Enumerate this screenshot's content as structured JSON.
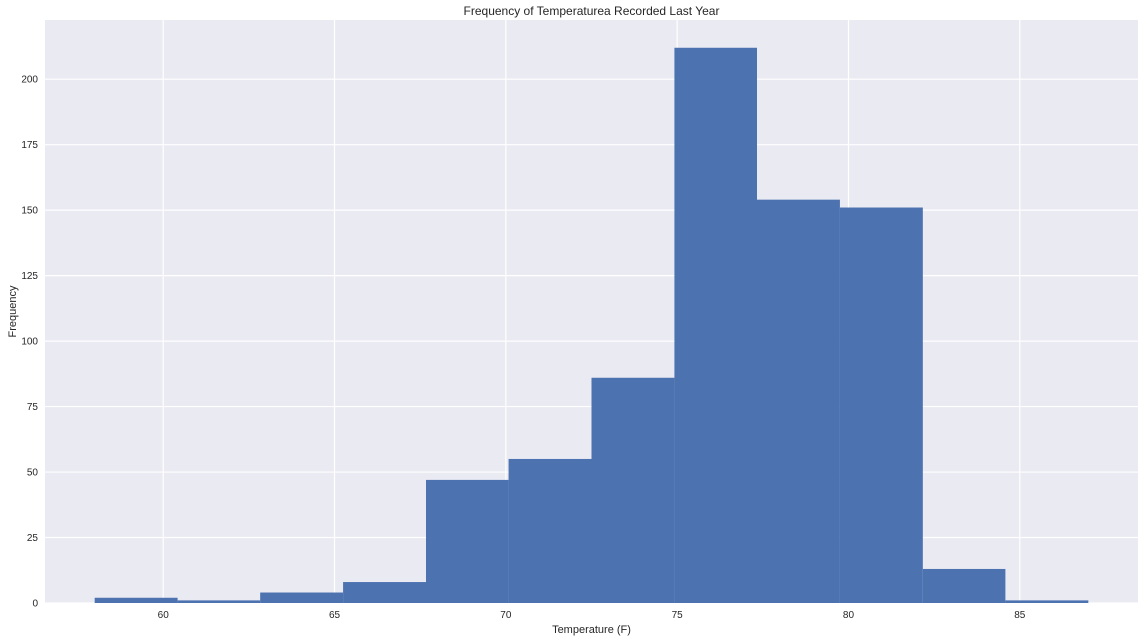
{
  "chart_data": {
    "type": "bar",
    "title": "Frequency of Temperaturea Recorded Last Year",
    "xlabel": "Temperature (F)",
    "ylabel": "Frequency",
    "bin_edges": [
      58.0,
      60.42,
      62.83,
      65.25,
      67.67,
      70.08,
      72.5,
      74.92,
      77.33,
      79.75,
      82.17,
      84.58,
      87.0
    ],
    "values": [
      2,
      1,
      4,
      8,
      47,
      55,
      86,
      212,
      154,
      151,
      13,
      1
    ],
    "xlim": [
      56.55,
      88.45
    ],
    "ylim": [
      0,
      222.6
    ],
    "x_ticks": [
      60,
      65,
      70,
      75,
      80,
      85
    ],
    "y_ticks": [
      0,
      25,
      50,
      75,
      100,
      125,
      150,
      175,
      200
    ],
    "grid": true,
    "colors": {
      "bar": "#4c72b0",
      "background": "#eaeaf2",
      "grid": "#ffffff"
    }
  }
}
